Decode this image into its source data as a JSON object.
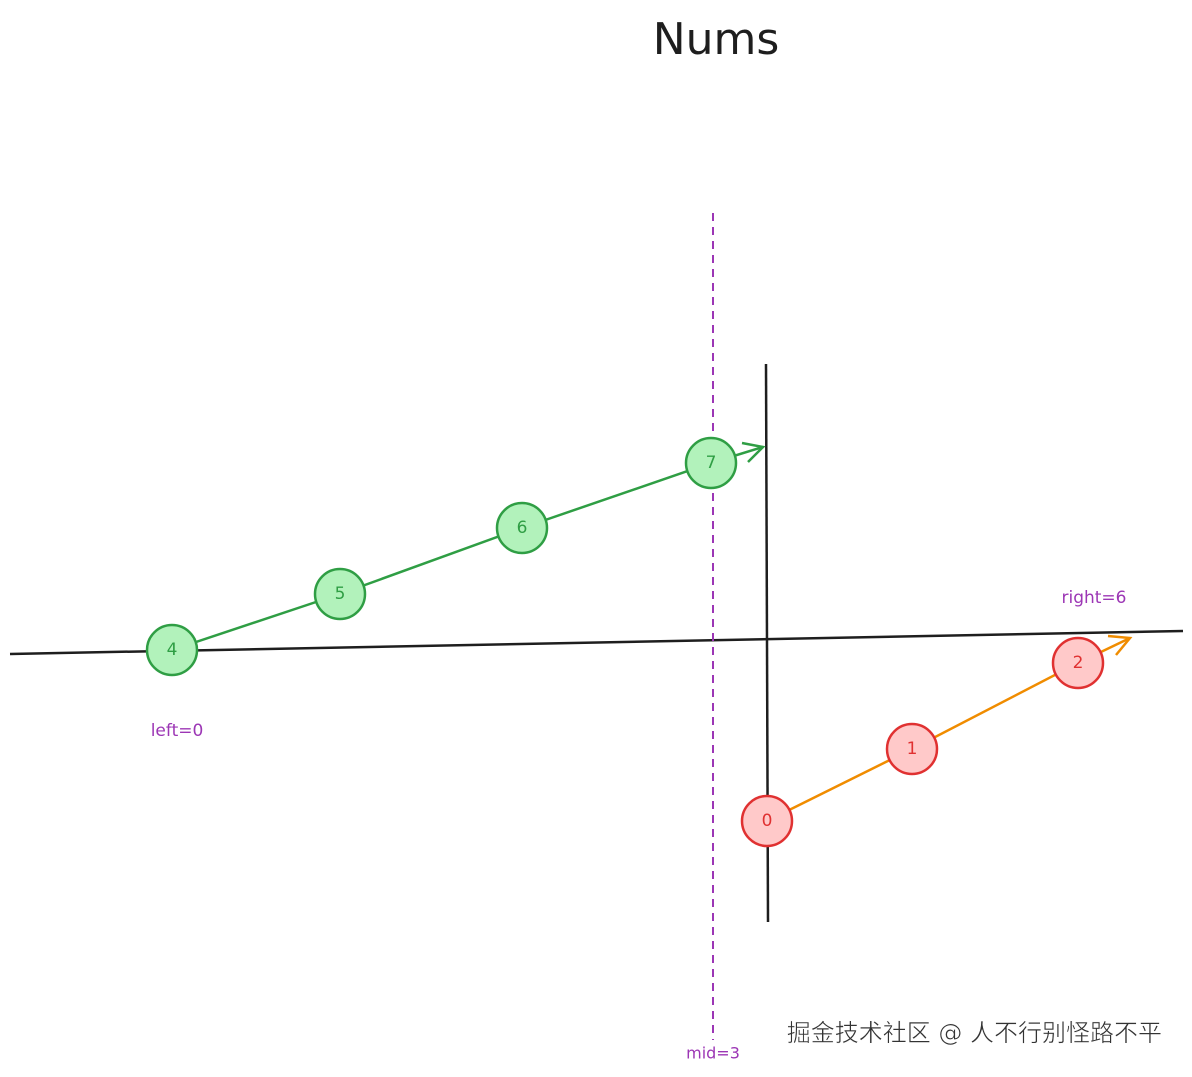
{
  "title": "Nums",
  "nodes": [
    {
      "label": "4"
    },
    {
      "label": "5"
    },
    {
      "label": "6"
    },
    {
      "label": "7"
    },
    {
      "label": "0"
    },
    {
      "label": "1"
    },
    {
      "label": "2"
    }
  ],
  "markers": {
    "left": "left=0",
    "right": "right=6",
    "mid": "mid=3"
  },
  "watermark": "掘金技术社区 @ 人不行别怪路不平"
}
